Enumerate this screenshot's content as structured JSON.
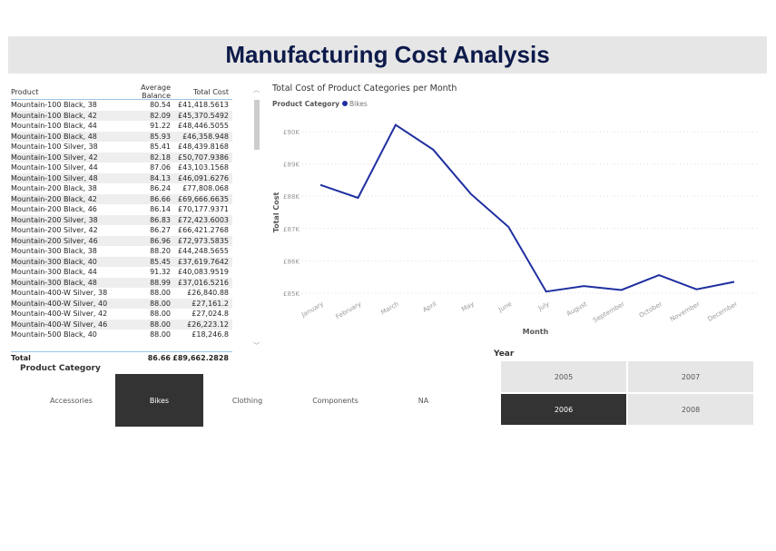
{
  "title": "Manufacturing Cost Analysis",
  "table": {
    "headers": [
      "Product",
      "Average Balance",
      "Total Cost"
    ],
    "rows": [
      [
        "Mountain-100 Black, 38",
        "80.54",
        "£41,418.5613"
      ],
      [
        "Mountain-100 Black, 42",
        "82.09",
        "£45,370.5492"
      ],
      [
        "Mountain-100 Black, 44",
        "91.22",
        "£48,446.5055"
      ],
      [
        "Mountain-100 Black, 48",
        "85.93",
        "£46,358.948"
      ],
      [
        "Mountain-100 Silver, 38",
        "85.41",
        "£48,439.8168"
      ],
      [
        "Mountain-100 Silver, 42",
        "82.18",
        "£50,707.9386"
      ],
      [
        "Mountain-100 Silver, 44",
        "87.06",
        "£43,103.1568"
      ],
      [
        "Mountain-100 Silver, 48",
        "84.13",
        "£46,091.6276"
      ],
      [
        "Mountain-200 Black, 38",
        "86.24",
        "£77,808.068"
      ],
      [
        "Mountain-200 Black, 42",
        "86.66",
        "£69,666.6635"
      ],
      [
        "Mountain-200 Black, 46",
        "86.14",
        "£70,177.9371"
      ],
      [
        "Mountain-200 Silver, 38",
        "86.83",
        "£72,423.6003"
      ],
      [
        "Mountain-200 Silver, 42",
        "86.27",
        "£66,421.2768"
      ],
      [
        "Mountain-200 Silver, 46",
        "86.96",
        "£72,973.5835"
      ],
      [
        "Mountain-300 Black, 38",
        "88.20",
        "£44,248.5655"
      ],
      [
        "Mountain-300 Black, 40",
        "85.45",
        "£37,619.7642"
      ],
      [
        "Mountain-300 Black, 44",
        "91.32",
        "£40,083.9519"
      ],
      [
        "Mountain-300 Black, 48",
        "88.99",
        "£37,016.5216"
      ],
      [
        "Mountain-400-W Silver, 38",
        "88.00",
        "£26,840.88"
      ],
      [
        "Mountain-400-W Silver, 40",
        "88.00",
        "£27,161.2"
      ],
      [
        "Mountain-400-W Silver, 42",
        "88.00",
        "£27,024.8"
      ],
      [
        "Mountain-400-W Silver, 46",
        "88.00",
        "£26,223.12"
      ],
      [
        "Mountain-500 Black, 40",
        "88.00",
        "£18,246.8"
      ]
    ],
    "total": [
      "Total",
      "86.66",
      "£89,662.2828"
    ]
  },
  "chart_data": {
    "type": "line",
    "title": "Total Cost of Product Categories per Month",
    "legend_title": "Product Category",
    "legend_position": "top-left",
    "series": [
      {
        "name": "Bikes",
        "color": "#1f2fa0",
        "values": [
          88350,
          87950,
          90210,
          89440,
          88070,
          87050,
          85050,
          85220,
          85100,
          85560,
          85120,
          85350
        ]
      }
    ],
    "categories": [
      "January",
      "February",
      "March",
      "April",
      "May",
      "June",
      "July",
      "August",
      "September",
      "October",
      "November",
      "December"
    ],
    "xlabel": "Month",
    "ylabel": "Total Cost",
    "ylim": [
      85000,
      90000
    ],
    "yticks": [
      "£85K",
      "£86K",
      "£87K",
      "£88K",
      "£89K",
      "£90K"
    ],
    "grid": true
  },
  "category_slicer": {
    "label": "Product Category",
    "items": [
      "Accessories",
      "Bikes",
      "Clothing",
      "Components",
      "NA"
    ],
    "selected": "Bikes"
  },
  "year_slicer": {
    "label": "Year",
    "items": [
      "2005",
      "2007",
      "2006",
      "2008"
    ],
    "selected": "2006"
  }
}
